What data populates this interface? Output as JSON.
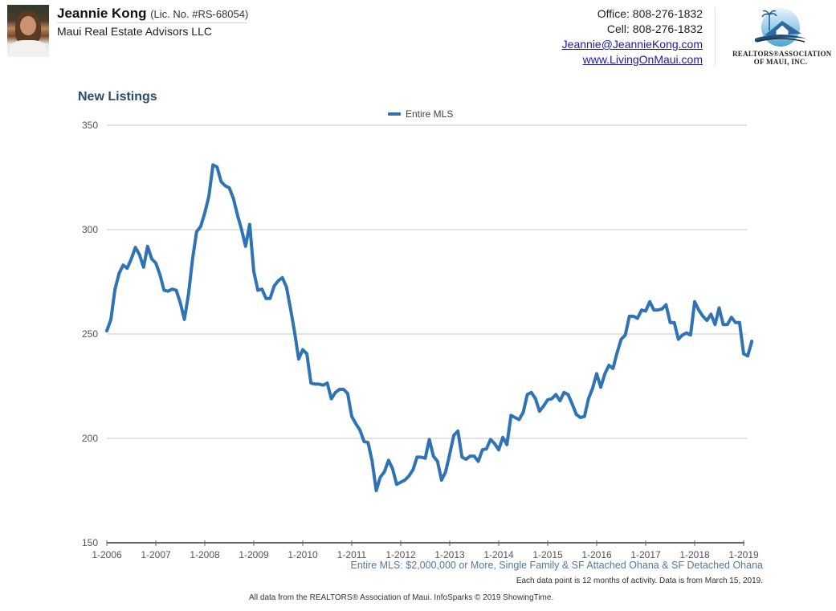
{
  "header": {
    "agent_name": "Jeannie Kong",
    "agent_license": "(Lic. No. #RS-68054)",
    "company": "Maui Real Estate Advisors LLC",
    "office": "Office: 808-276-1832",
    "cell": "Cell: 808-276-1832",
    "email": "Jeannie@JeannieKong.com",
    "website": "www.LivingOnMaui.com",
    "logo_line1": "REALTORS®ASSOCIATION",
    "logo_line2": "OF MAUI, INC."
  },
  "chart_data": {
    "type": "line",
    "title": "New Listings",
    "xlabel": "",
    "ylabel": "",
    "ylim": [
      150,
      350
    ],
    "yticks": [
      150,
      200,
      250,
      300,
      350
    ],
    "ytick_labels": [
      "150",
      "200",
      "250",
      "300",
      "350"
    ],
    "xtick_labels": [
      "1-2006",
      "1-2007",
      "1-2008",
      "1-2009",
      "1-2010",
      "1-2011",
      "1-2012",
      "1-2013",
      "1-2014",
      "1-2015",
      "1-2016",
      "1-2017",
      "1-2018",
      "1-2019"
    ],
    "x_start": "2006-01",
    "x_interval": "month",
    "grid": "horizontal",
    "legend_position": "top-center",
    "series": [
      {
        "name": "Entire MLS",
        "color": "#2f73b5",
        "values": [
          251.5,
          257,
          271.5,
          279,
          283,
          281.5,
          286,
          291.5,
          288,
          282,
          292,
          286,
          284,
          278.5,
          271,
          270.5,
          271.5,
          271,
          265,
          257,
          269,
          286,
          299,
          301.5,
          308,
          316,
          331,
          330,
          323,
          321,
          320,
          315,
          307,
          300,
          292,
          302.5,
          280,
          271,
          271.5,
          267,
          267,
          273,
          275.5,
          277,
          272.5,
          262,
          251,
          238,
          242.5,
          240.5,
          226.5,
          226,
          226,
          225.5,
          226.5,
          219,
          222,
          223.5,
          223.5,
          221.5,
          210.5,
          207,
          204,
          198.5,
          198,
          189,
          175,
          181.5,
          184,
          189.5,
          185.5,
          178,
          179,
          180,
          182,
          185,
          191,
          191,
          190.5,
          199.5,
          191.5,
          189,
          180,
          184,
          192.5,
          201.5,
          203.5,
          191,
          190,
          191.5,
          191.5,
          189,
          194.5,
          195,
          199.5,
          197.5,
          194.5,
          200.5,
          197,
          211,
          210,
          209,
          212.5,
          221,
          222,
          219,
          213,
          215.5,
          218.5,
          219,
          221,
          218,
          222,
          221,
          216.5,
          211.5,
          210,
          210.5,
          219,
          224,
          231,
          224.5,
          231,
          235,
          233.5,
          241,
          247.5,
          249.5,
          258.5,
          258.5,
          257.5,
          261.5,
          261,
          265.5,
          261.5,
          261.5,
          262,
          264,
          255.5,
          255.5,
          247.5,
          249.5,
          250.5,
          249.5,
          265.5,
          261.5,
          258.5,
          256.5,
          259.5,
          254.5,
          262.5,
          254.5,
          254.5,
          258,
          255.5,
          255.5,
          240.5,
          239.5,
          246.5
        ]
      }
    ],
    "subtitle_note": "Entire MLS: $2,000,000 or More, Single Family & SF Attached Ohana & SF Detached Ohana",
    "data_note": "Each data point is 12 months of activity. Data is from March 15, 2019.",
    "source": "All data from the REALTORS® Association of Maui. InfoSparks © 2019 ShowingTime."
  }
}
